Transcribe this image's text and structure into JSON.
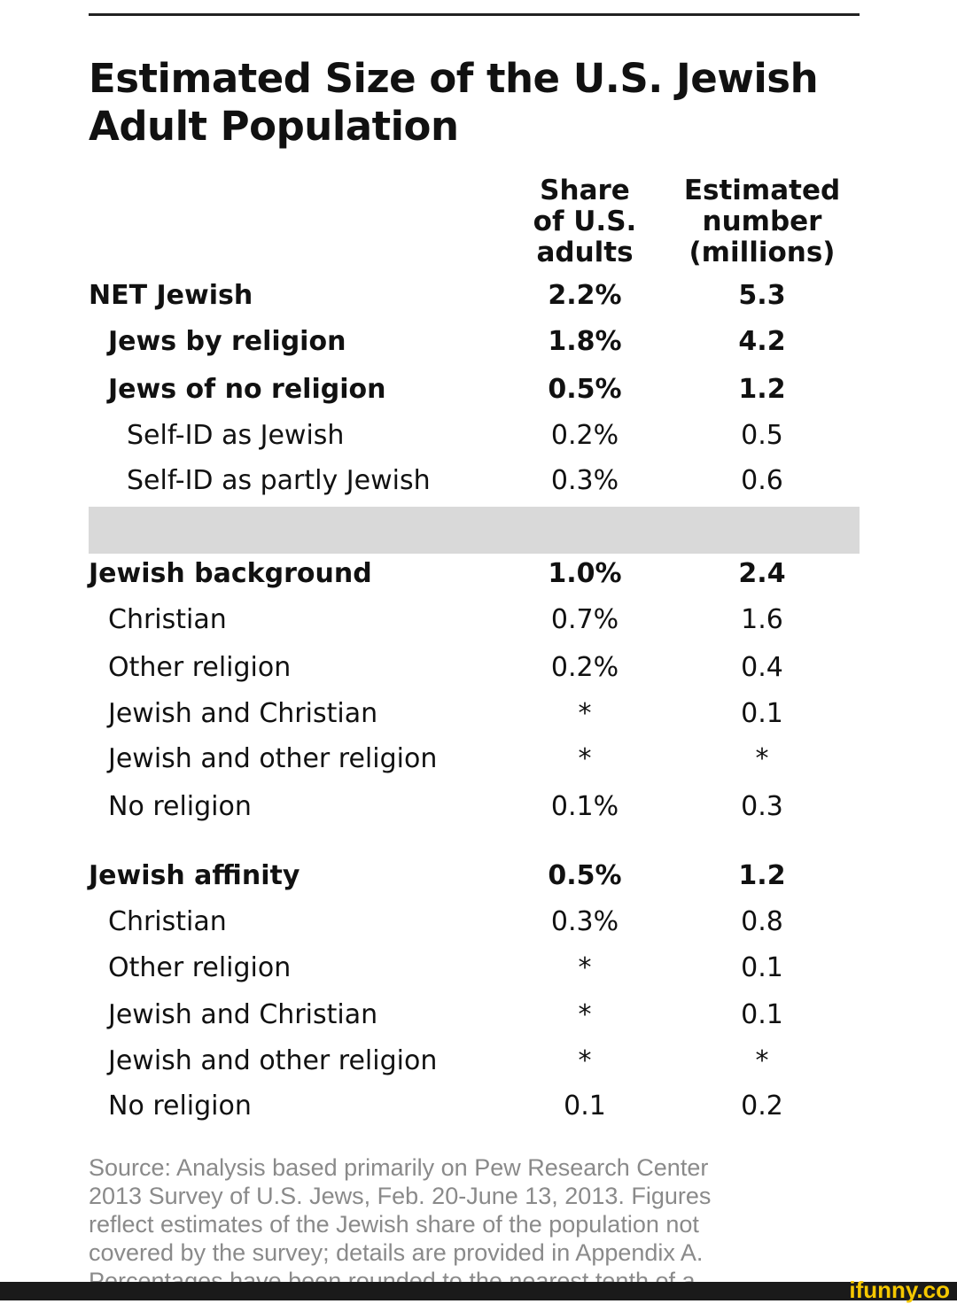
{
  "title": "Estimated Size of the U.S. Jewish Adult Population",
  "columns": {
    "share": [
      "Share",
      "of U.S.",
      "adults"
    ],
    "number": [
      "Estimated",
      "number",
      "(millions)"
    ]
  },
  "rows": [
    {
      "label": "NET Jewish",
      "share": "2.2%",
      "number": "5.3",
      "bold": true,
      "indent": 0
    },
    {
      "label": "Jews by religion",
      "share": "1.8%",
      "number": "4.2",
      "bold": true,
      "indent": 1
    },
    {
      "label": "Jews of no religion",
      "share": "0.5%",
      "number": "1.2",
      "bold": true,
      "indent": 1
    },
    {
      "label": "Self-ID as Jewish",
      "share": "0.2%",
      "number": "0.5",
      "bold": false,
      "indent": 2
    },
    {
      "label": "Self-ID as partly Jewish",
      "share": "0.3%",
      "number": "0.6",
      "bold": false,
      "indent": 2
    },
    {
      "label": "Jewish background",
      "share": "1.0%",
      "number": "2.4",
      "bold": true,
      "indent": 0
    },
    {
      "label": "Christian",
      "share": "0.7%",
      "number": "1.6",
      "bold": false,
      "indent": 1
    },
    {
      "label": "Other religion",
      "share": "0.2%",
      "number": "0.4",
      "bold": false,
      "indent": 1
    },
    {
      "label": "Jewish and Christian",
      "share": "*",
      "number": "0.1",
      "bold": false,
      "indent": 1
    },
    {
      "label": "Jewish and other religion",
      "share": "*",
      "number": "*",
      "bold": false,
      "indent": 1
    },
    {
      "label": "No religion",
      "share": "0.1%",
      "number": "0.3",
      "bold": false,
      "indent": 1
    },
    {
      "label": "Jewish affinity",
      "share": "0.5%",
      "number": "1.2",
      "bold": true,
      "indent": 0
    },
    {
      "label": "Christian",
      "share": "0.3%",
      "number": "0.8",
      "bold": false,
      "indent": 1
    },
    {
      "label": "Other religion",
      "share": "*",
      "number": "0.1",
      "bold": false,
      "indent": 1
    },
    {
      "label": "Jewish and Christian",
      "share": "*",
      "number": "0.1",
      "bold": false,
      "indent": 1
    },
    {
      "label": "Jewish and other religion",
      "share": "*",
      "number": "*",
      "bold": false,
      "indent": 1
    },
    {
      "label": "No religion",
      "share": "0.1",
      "number": "0.2",
      "bold": false,
      "indent": 1
    }
  ],
  "source": [
    "Source: Analysis based primarily on Pew Research Center",
    "2013 Survey of U.S. Jews, Feb. 20-June 13, 2013. Figures",
    "reflect estimates of the Jewish share of the population not",
    "covered by the survey; details are provided in Appendix A.",
    "Percentages have been rounded to the nearest tenth of a"
  ],
  "watermark": "ifunny.co"
}
